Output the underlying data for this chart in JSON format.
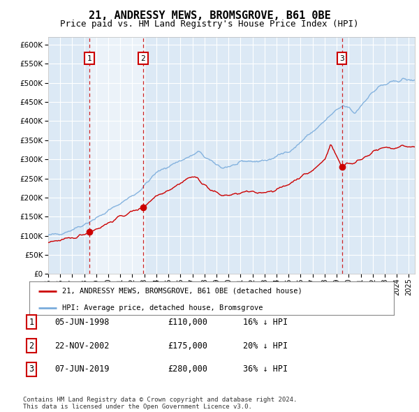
{
  "title": "21, ANDRESSY MEWS, BROMSGROVE, B61 0BE",
  "subtitle": "Price paid vs. HM Land Registry's House Price Index (HPI)",
  "title_fontsize": 11,
  "subtitle_fontsize": 9,
  "ylim": [
    0,
    620000
  ],
  "yticks": [
    0,
    50000,
    100000,
    150000,
    200000,
    250000,
    300000,
    350000,
    400000,
    450000,
    500000,
    550000,
    600000
  ],
  "xlim_start": 1995.0,
  "xlim_end": 2025.5,
  "hpi_color": "#7aacdc",
  "price_color": "#cc0000",
  "transaction_color": "#cc0000",
  "grid_bg": "#dce9f5",
  "shade_color": "#c8ddf0",
  "transactions": [
    {
      "label": "1",
      "date": "05-JUN-1998",
      "price": 110000,
      "pct": "16%",
      "x": 1998.43
    },
    {
      "label": "2",
      "date": "22-NOV-2002",
      "price": 175000,
      "pct": "20%",
      "x": 2002.89
    },
    {
      "label": "3",
      "date": "07-JUN-2019",
      "price": 280000,
      "pct": "36%",
      "x": 2019.43
    }
  ],
  "legend_entries": [
    "21, ANDRESSY MEWS, BROMSGROVE, B61 0BE (detached house)",
    "HPI: Average price, detached house, Bromsgrove"
  ],
  "table_data": [
    [
      "1",
      "05-JUN-1998",
      "£110,000",
      "16% ↓ HPI"
    ],
    [
      "2",
      "22-NOV-2002",
      "£175,000",
      "20% ↓ HPI"
    ],
    [
      "3",
      "07-JUN-2019",
      "£280,000",
      "36% ↓ HPI"
    ]
  ],
  "footer": "Contains HM Land Registry data © Crown copyright and database right 2024.\nThis data is licensed under the Open Government Licence v3.0."
}
